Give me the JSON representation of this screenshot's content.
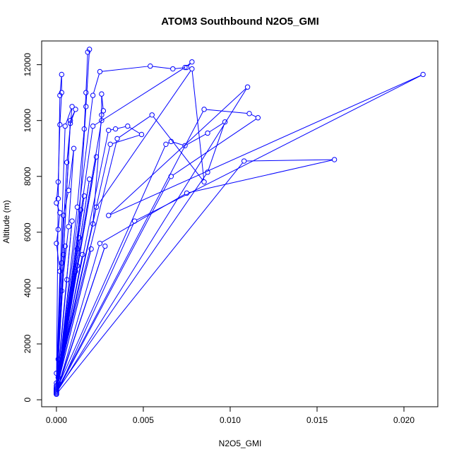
{
  "chart_data": {
    "type": "scatter",
    "connected": true,
    "title": "ATOM3 Southbound N2O5_GMI",
    "xlabel": "N2O5_GMI",
    "ylabel": "Altitude (m)",
    "xlim": [
      -0.00085,
      0.02195
    ],
    "ylim": [
      -250,
      12850
    ],
    "xticks": [
      0.0,
      0.005,
      0.01,
      0.015,
      0.02
    ],
    "xtick_labels": [
      "0.000",
      "0.005",
      "0.010",
      "0.015",
      "0.020"
    ],
    "yticks": [
      0,
      2000,
      4000,
      6000,
      8000,
      10000,
      12000
    ],
    "ytick_labels": [
      "0",
      "2000",
      "4000",
      "6000",
      "8000",
      "10000",
      "12000"
    ],
    "grid": false,
    "legend": "none",
    "color": "#0000ff",
    "series": [
      {
        "points": [
          [
            0.0,
            200
          ],
          [
            0.0,
            300
          ],
          [
            0.0001,
            1450
          ],
          [
            0.0,
            950
          ],
          [
            0.0,
            600
          ],
          [
            0.0002,
            4600
          ],
          [
            0.0,
            5600
          ],
          [
            0.0001,
            6100
          ],
          [
            0.0002,
            6700
          ],
          [
            0.0,
            7050
          ],
          [
            0.0001,
            7800
          ],
          [
            0.0002,
            9850
          ],
          [
            0.0003,
            11000
          ],
          [
            0.0003,
            11650
          ],
          [
            0.0002,
            10900
          ],
          [
            0.0001,
            7200
          ],
          [
            0.0,
            400
          ],
          [
            0.0005,
            9800
          ],
          [
            0.0009,
            10500
          ],
          [
            0.0006,
            8500
          ],
          [
            0.0003,
            4900
          ],
          [
            0.0,
            250
          ],
          [
            0.0008,
            10000
          ],
          [
            0.0011,
            10400
          ],
          [
            0.0008,
            9900
          ],
          [
            0.0004,
            5200
          ],
          [
            0.0,
            350
          ],
          [
            0.0004,
            6600
          ],
          [
            0.0007,
            7500
          ],
          [
            0.001,
            9000
          ],
          [
            0.0007,
            6200
          ],
          [
            0.0003,
            3900
          ],
          [
            0.0,
            200
          ],
          [
            0.0012,
            6900
          ],
          [
            0.0016,
            9700
          ],
          [
            0.0017,
            11000
          ],
          [
            0.0018,
            12450
          ],
          [
            0.0019,
            12550
          ],
          [
            0.0017,
            10500
          ],
          [
            0.0012,
            5400
          ],
          [
            0.0,
            300
          ],
          [
            0.0021,
            10900
          ],
          [
            0.0025,
            11750
          ],
          [
            0.0054,
            11950
          ],
          [
            0.0067,
            11850
          ],
          [
            0.0075,
            11900
          ],
          [
            0.0078,
            12100
          ],
          [
            0.0074,
            11900
          ],
          [
            0.0021,
            9800
          ],
          [
            0.0,
            450
          ],
          [
            0.0026,
            10000
          ],
          [
            0.0026,
            10950
          ],
          [
            0.0027,
            10350
          ],
          [
            0.0026,
            10200
          ],
          [
            0.0021,
            6300
          ],
          [
            0.0,
            500
          ],
          [
            0.003,
            9650
          ],
          [
            0.0034,
            9700
          ],
          [
            0.0041,
            9800
          ],
          [
            0.0049,
            9500
          ],
          [
            0.0031,
            9150
          ],
          [
            0.0001,
            800
          ],
          [
            0.0035,
            9350
          ],
          [
            0.0055,
            10200
          ],
          [
            0.0085,
            7800
          ],
          [
            0.0078,
            11850
          ],
          [
            0.0023,
            6900
          ],
          [
            0.0,
            350
          ],
          [
            0.0063,
            9150
          ],
          [
            0.0066,
            9250
          ],
          [
            0.0074,
            9100
          ],
          [
            0.0087,
            9550
          ],
          [
            0.0097,
            9950
          ],
          [
            0.0087,
            8150
          ],
          [
            0.0,
            300
          ],
          [
            0.0085,
            10400
          ],
          [
            0.0111,
            10250
          ],
          [
            0.0116,
            10100
          ],
          [
            0.0066,
            8000
          ],
          [
            0.0,
            250
          ],
          [
            0.011,
            11200
          ],
          [
            0.003,
            6600
          ],
          [
            0.0211,
            11650
          ],
          [
            0.0045,
            6400
          ],
          [
            0.0,
            200
          ],
          [
            0.0108,
            8550
          ],
          [
            0.016,
            8600
          ],
          [
            0.0075,
            7400
          ],
          [
            0.0025,
            5600
          ],
          [
            0.0,
            250
          ],
          [
            0.0028,
            5500
          ],
          [
            0.0,
            300
          ],
          [
            0.0015,
            5200
          ],
          [
            0.0,
            350
          ],
          [
            0.002,
            5400
          ],
          [
            0.0001,
            600
          ],
          [
            0.0012,
            4800
          ],
          [
            0.0,
            400
          ],
          [
            0.0011,
            4600
          ],
          [
            0.0,
            300
          ],
          [
            0.0006,
            4300
          ],
          [
            0.0,
            250
          ],
          [
            0.0023,
            8700
          ],
          [
            0.0,
            300
          ],
          [
            0.0019,
            7900
          ],
          [
            0.0,
            350
          ],
          [
            0.0016,
            7300
          ],
          [
            0.0,
            200
          ],
          [
            0.0014,
            6800
          ],
          [
            0.0,
            250
          ],
          [
            0.0013,
            5800
          ],
          [
            0.0,
            300
          ],
          [
            0.0009,
            6400
          ],
          [
            0.0,
            400
          ],
          [
            0.0005,
            5500
          ],
          [
            0.0,
            300
          ]
        ]
      }
    ]
  }
}
